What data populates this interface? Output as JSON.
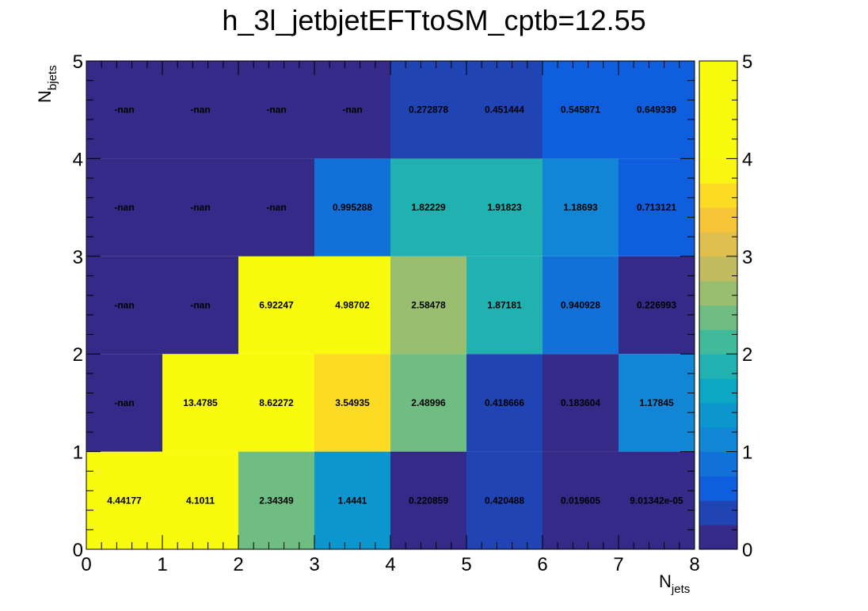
{
  "chart_data": {
    "type": "heatmap",
    "title": "h_3l_jetbjetEFTtoSM_cptb=12.55",
    "xlabel": {
      "main": "N",
      "sub": "jets"
    },
    "ylabel": {
      "main": "N",
      "sub": "bjets"
    },
    "x_edges": [
      0,
      1,
      2,
      3,
      4,
      5,
      6,
      7,
      8
    ],
    "y_edges": [
      0,
      1,
      2,
      3,
      4,
      5
    ],
    "x_tick_labels": [
      "0",
      "1",
      "2",
      "3",
      "4",
      "5",
      "6",
      "7",
      "8"
    ],
    "y_tick_labels": [
      "0",
      "1",
      "2",
      "3",
      "4",
      "5"
    ],
    "xlim": [
      0,
      8
    ],
    "ylim": [
      0,
      5
    ],
    "zlim": [
      0,
      5
    ],
    "colorbar_tick_labels": [
      "0",
      "1",
      "2",
      "3",
      "4",
      "5"
    ],
    "palette": "parula",
    "rows": [
      {
        "y_bin": 0,
        "values": [
          4.44177,
          4.1011,
          2.34349,
          1.4441,
          0.220859,
          0.420488,
          0.019605,
          9.01342e-05
        ],
        "labels": [
          "4.44177",
          "4.1011",
          "2.34349",
          "1.4441",
          "0.220859",
          "0.420488",
          "0.019605",
          "9.01342e-05"
        ]
      },
      {
        "y_bin": 1,
        "values": [
          null,
          13.4785,
          8.62272,
          3.54935,
          2.48996,
          0.418666,
          0.183604,
          1.17845
        ],
        "labels": [
          "-nan",
          "13.4785",
          "8.62272",
          "3.54935",
          "2.48996",
          "0.418666",
          "0.183604",
          "1.17845"
        ]
      },
      {
        "y_bin": 2,
        "values": [
          null,
          null,
          6.92247,
          4.98702,
          2.58478,
          1.87181,
          0.940928,
          0.226993
        ],
        "labels": [
          "-nan",
          "-nan",
          "6.92247",
          "4.98702",
          "2.58478",
          "1.87181",
          "0.940928",
          "0.226993"
        ]
      },
      {
        "y_bin": 3,
        "values": [
          null,
          null,
          null,
          0.995288,
          1.82229,
          1.91823,
          1.18693,
          0.713121
        ],
        "labels": [
          "-nan",
          "-nan",
          "-nan",
          "0.995288",
          "1.82229",
          "1.91823",
          "1.18693",
          "0.713121"
        ]
      },
      {
        "y_bin": 4,
        "values": [
          null,
          null,
          null,
          null,
          0.272878,
          0.451444,
          0.545871,
          0.649339
        ],
        "labels": [
          "-nan",
          "-nan",
          "-nan",
          "-nan",
          "0.272878",
          "0.451444",
          "0.545871",
          "0.649339"
        ]
      }
    ]
  }
}
